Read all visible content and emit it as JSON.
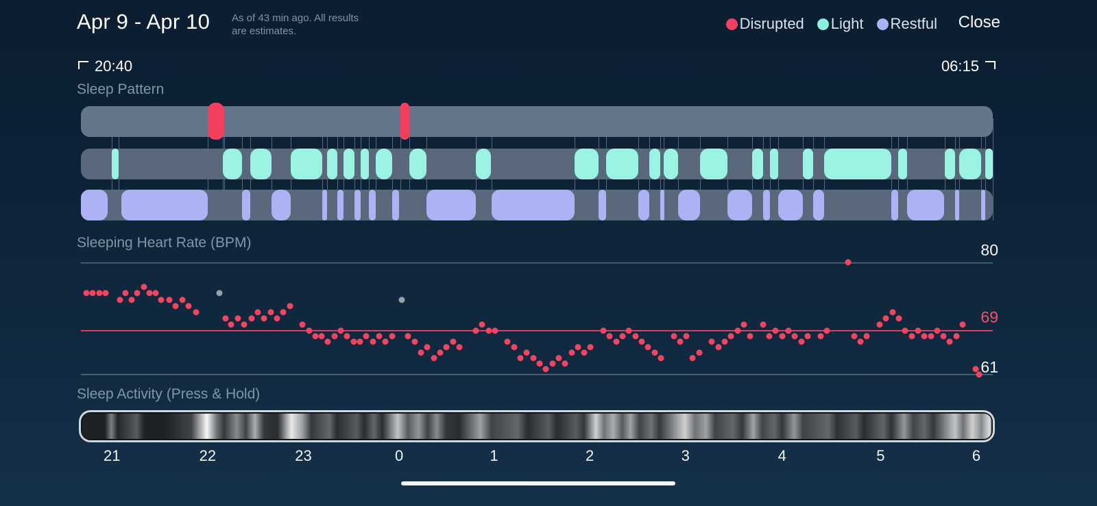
{
  "header": {
    "title": "Apr 9 - Apr 10",
    "subtitle_line1": "As of 43 min ago. All results",
    "subtitle_line2": "are estimates.",
    "legend": [
      {
        "label": "Disrupted",
        "color": "#f43f5f"
      },
      {
        "label": "Light",
        "color": "#8cf2e0"
      },
      {
        "label": "Restful",
        "color": "#acb3f4"
      }
    ],
    "close_label": "Close"
  },
  "time_range": {
    "start": "20:40",
    "end": "06:15"
  },
  "sections": {
    "pattern_title": "Sleep Pattern",
    "heart_rate_title": "Sleeping Heart Rate (BPM)",
    "activity_title": "Sleep Activity (Press & Hold)"
  },
  "x_axis": {
    "labels": [
      "21",
      "22",
      "23",
      "0",
      "1",
      "2",
      "3",
      "4",
      "5",
      "6"
    ],
    "positions_pct": [
      3.4,
      13.9,
      24.4,
      34.9,
      45.3,
      55.8,
      66.3,
      76.9,
      87.7,
      98.2
    ]
  },
  "chart_data": [
    {
      "type": "timeline",
      "title": "Sleep Pattern",
      "x_start": "20:40",
      "x_end": "06:15",
      "tracks": [
        {
          "name": "disrupted",
          "color": "#f43f5f",
          "segments": [
            [
              13.9,
              15.7
            ],
            [
              35.0,
              36.0
            ]
          ]
        },
        {
          "name": "light",
          "color": "#9bf3e2",
          "segments": [
            [
              3.4,
              4.1
            ],
            [
              15.6,
              17.7
            ],
            [
              18.6,
              20.9
            ],
            [
              23.0,
              26.5
            ],
            [
              27.0,
              28.1
            ],
            [
              28.8,
              30.0
            ],
            [
              30.7,
              31.6
            ],
            [
              32.3,
              34.1
            ],
            [
              36.0,
              37.9
            ],
            [
              43.3,
              45.0
            ],
            [
              54.1,
              56.8
            ],
            [
              57.6,
              61.1
            ],
            [
              62.3,
              63.5
            ],
            [
              63.9,
              65.5
            ],
            [
              67.9,
              70.9
            ],
            [
              73.6,
              74.8
            ],
            [
              75.6,
              76.5
            ],
            [
              79.2,
              80.3
            ],
            [
              81.5,
              88.9
            ],
            [
              89.6,
              90.6
            ],
            [
              94.7,
              95.9
            ],
            [
              96.3,
              98.7
            ],
            [
              99.2,
              100
            ]
          ]
        },
        {
          "name": "restful",
          "color": "#acb3f4",
          "segments": [
            [
              0,
              2.9
            ],
            [
              4.4,
              13.9
            ],
            [
              17.7,
              18.6
            ],
            [
              20.9,
              23.0
            ],
            [
              26.5,
              27.0
            ],
            [
              28.1,
              28.8
            ],
            [
              30.0,
              30.7
            ],
            [
              31.6,
              32.3
            ],
            [
              34.1,
              34.9
            ],
            [
              37.9,
              43.3
            ],
            [
              45.0,
              54.1
            ],
            [
              56.8,
              57.6
            ],
            [
              61.1,
              62.3
            ],
            [
              63.5,
              63.9
            ],
            [
              65.5,
              67.9
            ],
            [
              70.9,
              73.6
            ],
            [
              74.8,
              75.6
            ],
            [
              76.5,
              79.2
            ],
            [
              80.3,
              81.5
            ],
            [
              88.9,
              89.6
            ],
            [
              90.6,
              94.7
            ],
            [
              95.9,
              96.3
            ],
            [
              98.7,
              99.2
            ]
          ]
        }
      ]
    },
    {
      "type": "scatter",
      "title": "Sleeping Heart Rate (BPM)",
      "ylim": [
        61,
        80
      ],
      "average_bpm": 69,
      "y_labels": {
        "top": "80",
        "avg": "69",
        "bottom": "61"
      },
      "point_color": "#f3455f",
      "gray_point_color": "#97a1a9",
      "points": [
        [
          0.6,
          75
        ],
        [
          1.3,
          75
        ],
        [
          2.0,
          75
        ],
        [
          2.7,
          75
        ],
        [
          4.3,
          74
        ],
        [
          4.9,
          75
        ],
        [
          5.6,
          74
        ],
        [
          6.2,
          75
        ],
        [
          6.9,
          76
        ],
        [
          7.5,
          75
        ],
        [
          8.2,
          75
        ],
        [
          8.8,
          74
        ],
        [
          9.7,
          74
        ],
        [
          10.4,
          73
        ],
        [
          11.1,
          74
        ],
        [
          11.8,
          73
        ],
        [
          12.6,
          72
        ],
        [
          15.9,
          71
        ],
        [
          16.5,
          70
        ],
        [
          17.2,
          71
        ],
        [
          17.9,
          70
        ],
        [
          18.7,
          71
        ],
        [
          19.4,
          72
        ],
        [
          20.1,
          71
        ],
        [
          20.8,
          72
        ],
        [
          21.5,
          71
        ],
        [
          22.2,
          72
        ],
        [
          22.9,
          73
        ],
        [
          24.3,
          70
        ],
        [
          25.0,
          69
        ],
        [
          25.7,
          68
        ],
        [
          26.4,
          68
        ],
        [
          27.1,
          67
        ],
        [
          27.8,
          68
        ],
        [
          28.5,
          69
        ],
        [
          29.2,
          68
        ],
        [
          29.9,
          67
        ],
        [
          30.6,
          67
        ],
        [
          31.3,
          68
        ],
        [
          32.0,
          67
        ],
        [
          32.7,
          68
        ],
        [
          33.4,
          67
        ],
        [
          34.1,
          68
        ],
        [
          35.9,
          68
        ],
        [
          36.6,
          67
        ],
        [
          37.3,
          65
        ],
        [
          38.0,
          66
        ],
        [
          38.7,
          64
        ],
        [
          39.4,
          65
        ],
        [
          40.1,
          66
        ],
        [
          40.8,
          67
        ],
        [
          41.5,
          66
        ],
        [
          43.3,
          69
        ],
        [
          44.0,
          70
        ],
        [
          44.7,
          69
        ],
        [
          45.4,
          69
        ],
        [
          46.8,
          67
        ],
        [
          47.5,
          66
        ],
        [
          48.2,
          64
        ],
        [
          48.9,
          65
        ],
        [
          49.6,
          64
        ],
        [
          50.3,
          63
        ],
        [
          51.0,
          62
        ],
        [
          51.7,
          63
        ],
        [
          52.4,
          64
        ],
        [
          53.1,
          63
        ],
        [
          53.8,
          65
        ],
        [
          54.5,
          66
        ],
        [
          55.2,
          65
        ],
        [
          55.9,
          66
        ],
        [
          57.3,
          69
        ],
        [
          58.0,
          68
        ],
        [
          58.7,
          67
        ],
        [
          59.4,
          68
        ],
        [
          60.1,
          69
        ],
        [
          60.8,
          68
        ],
        [
          61.5,
          67
        ],
        [
          62.2,
          66
        ],
        [
          62.9,
          65
        ],
        [
          63.6,
          64
        ],
        [
          65.0,
          68
        ],
        [
          65.7,
          67
        ],
        [
          66.4,
          68
        ],
        [
          67.1,
          64
        ],
        [
          67.8,
          65
        ],
        [
          69.2,
          67
        ],
        [
          69.9,
          66
        ],
        [
          70.6,
          67
        ],
        [
          71.3,
          68
        ],
        [
          72.0,
          69
        ],
        [
          72.7,
          70
        ],
        [
          73.4,
          68
        ],
        [
          74.8,
          70
        ],
        [
          75.5,
          68
        ],
        [
          76.2,
          69
        ],
        [
          76.9,
          68
        ],
        [
          77.6,
          69
        ],
        [
          78.3,
          68
        ],
        [
          79.0,
          67
        ],
        [
          79.7,
          68
        ],
        [
          81.1,
          68
        ],
        [
          81.8,
          69
        ],
        [
          84.1,
          80
        ],
        [
          84.8,
          68
        ],
        [
          85.5,
          67
        ],
        [
          86.2,
          68
        ],
        [
          87.6,
          70
        ],
        [
          88.3,
          71
        ],
        [
          89.0,
          72
        ],
        [
          89.7,
          71
        ],
        [
          90.4,
          69
        ],
        [
          91.1,
          68
        ],
        [
          91.8,
          69
        ],
        [
          92.5,
          68
        ],
        [
          93.2,
          68
        ],
        [
          93.9,
          69
        ],
        [
          94.6,
          68
        ],
        [
          95.3,
          67
        ],
        [
          96.0,
          68
        ],
        [
          96.7,
          70
        ],
        [
          98.1,
          62
        ],
        [
          98.5,
          61
        ]
      ],
      "gray_points": [
        [
          15.2,
          75
        ],
        [
          35.2,
          74
        ]
      ]
    },
    {
      "type": "heatmap",
      "title": "Sleep Activity (Press & Hold)",
      "stops": [
        [
          0,
          0.06
        ],
        [
          2.5,
          0.05
        ],
        [
          3.2,
          0.45
        ],
        [
          3.9,
          0.08
        ],
        [
          6,
          0.3
        ],
        [
          6.8,
          0.06
        ],
        [
          9,
          0.05
        ],
        [
          12,
          0.2
        ],
        [
          13.7,
          0.97
        ],
        [
          14.8,
          0.4
        ],
        [
          15.6,
          0.15
        ],
        [
          17,
          0.5
        ],
        [
          18,
          0.2
        ],
        [
          19,
          0.65
        ],
        [
          20,
          0.15
        ],
        [
          21.5,
          0.1
        ],
        [
          23,
          0.9
        ],
        [
          24.2,
          0.6
        ],
        [
          25.2,
          0.15
        ],
        [
          27.2,
          0.35
        ],
        [
          28,
          0.1
        ],
        [
          30.2,
          0.3
        ],
        [
          31,
          0.1
        ],
        [
          32.1,
          0.35
        ],
        [
          33,
          0.1
        ],
        [
          34.7,
          0.75
        ],
        [
          35.8,
          0.3
        ],
        [
          37,
          0.55
        ],
        [
          38,
          0.2
        ],
        [
          39,
          0.5
        ],
        [
          40,
          0.15
        ],
        [
          41.5,
          0.1
        ],
        [
          43.8,
          0.6
        ],
        [
          45,
          0.2
        ],
        [
          47.9,
          0.35
        ],
        [
          49,
          0.1
        ],
        [
          51.3,
          0.3
        ],
        [
          52.2,
          0.1
        ],
        [
          54.3,
          0.3
        ],
        [
          55.2,
          0.15
        ],
        [
          56.5,
          0.8
        ],
        [
          57.4,
          0.4
        ],
        [
          58.4,
          0.65
        ],
        [
          59.4,
          0.3
        ],
        [
          60.3,
          0.6
        ],
        [
          61.3,
          0.2
        ],
        [
          62.6,
          0.4
        ],
        [
          63.5,
          0.15
        ],
        [
          66.3,
          0.8
        ],
        [
          67.4,
          0.4
        ],
        [
          68.6,
          0.6
        ],
        [
          69.6,
          0.2
        ],
        [
          71.6,
          0.35
        ],
        [
          72.6,
          0.15
        ],
        [
          73.8,
          0.6
        ],
        [
          74.8,
          0.2
        ],
        [
          76.1,
          0.35
        ],
        [
          77,
          0.15
        ],
        [
          78.3,
          0.55
        ],
        [
          79.3,
          0.2
        ],
        [
          82.1,
          0.35
        ],
        [
          83,
          0.12
        ],
        [
          85.1,
          0.3
        ],
        [
          86,
          0.1
        ],
        [
          88.1,
          0.35
        ],
        [
          89,
          0.12
        ],
        [
          90.4,
          0.55
        ],
        [
          91.4,
          0.2
        ],
        [
          92.6,
          0.35
        ],
        [
          93.6,
          0.15
        ],
        [
          96,
          0.75
        ],
        [
          96.9,
          0.4
        ],
        [
          97.9,
          0.8
        ],
        [
          98.9,
          0.5
        ],
        [
          99.8,
          0.85
        ],
        [
          100,
          0.6
        ]
      ]
    }
  ]
}
